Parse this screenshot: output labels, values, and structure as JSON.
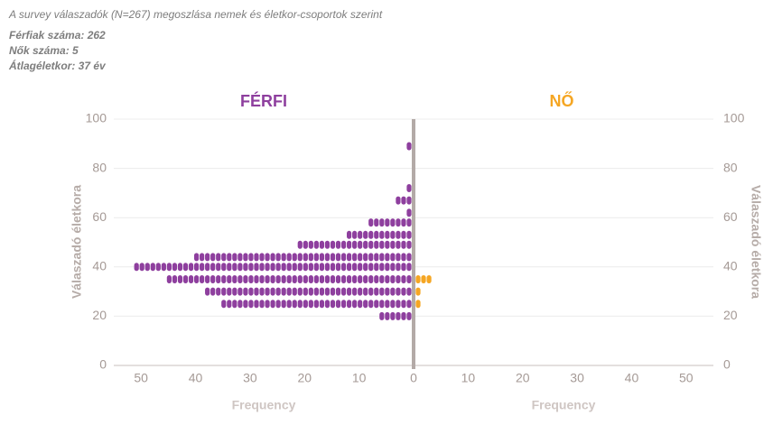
{
  "chart_data": {
    "type": "dot-pyramid",
    "title": "A survey válaszadók (N=267) megoszlása nemek és életkor-csoportok szerint",
    "notes": [
      "Férfiak száma: 262",
      "Nők száma: 5",
      "Átlagéletkor: 37 év"
    ],
    "y_label": "Válaszadó életkora",
    "x_label": "Frequency",
    "categories": [
      20,
      25,
      30,
      35,
      40,
      44,
      49,
      53,
      58,
      62,
      67,
      72,
      89
    ],
    "series": [
      {
        "name": "FÉRFI",
        "color": "#8e3f9e",
        "side": "left",
        "values": [
          6,
          35,
          38,
          45,
          51,
          40,
          21,
          12,
          8,
          1,
          3,
          1,
          1
        ]
      },
      {
        "name": "NŐ",
        "color": "#f5a623",
        "side": "right",
        "values": [
          0,
          1,
          1,
          3,
          0,
          0,
          0,
          0,
          0,
          0,
          0,
          0,
          0
        ]
      }
    ],
    "ylim": [
      0,
      100
    ],
    "yticks": [
      0,
      20,
      40,
      60,
      80,
      100
    ],
    "xlim": [
      0,
      55
    ],
    "xticks": [
      0,
      10,
      20,
      30,
      40,
      50
    ],
    "grid": true
  }
}
